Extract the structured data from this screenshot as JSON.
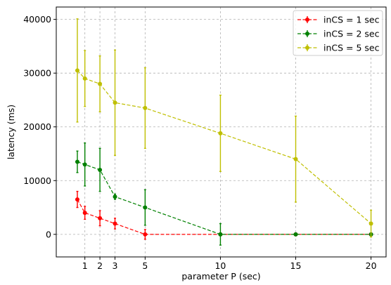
{
  "chart_data": {
    "type": "line",
    "title": "",
    "xlabel": "parameter P (sec)",
    "ylabel": "latency (ms)",
    "xticks": [
      1,
      2,
      3,
      5,
      10,
      15,
      20
    ],
    "yticks": [
      0,
      10000,
      20000,
      30000,
      40000
    ],
    "xlim": [
      -0.9,
      21
    ],
    "ylim": [
      -4200,
      42300
    ],
    "x": [
      0.5,
      1,
      2,
      3,
      5,
      10,
      15,
      20
    ],
    "grid": true,
    "legend_position": "top-right",
    "series": [
      {
        "name": "inCS = 1 sec",
        "color": "#ff0000",
        "values": [
          6500,
          4000,
          3000,
          2000,
          0,
          0,
          0,
          0
        ],
        "errors": [
          1500,
          1200,
          1400,
          1000,
          900,
          100,
          50,
          50
        ]
      },
      {
        "name": "inCS = 2 sec",
        "color": "#008000",
        "values": [
          13500,
          13000,
          12000,
          7000,
          5000,
          0,
          0,
          0
        ],
        "errors": [
          2000,
          4000,
          4000,
          500,
          3300,
          2000,
          100,
          100
        ]
      },
      {
        "name": "inCS = 5 sec",
        "color": "#bfbf00",
        "values": [
          30500,
          29000,
          28000,
          24500,
          23500,
          18800,
          14000,
          2000
        ],
        "errors": [
          9600,
          5200,
          5200,
          9800,
          7500,
          7100,
          8000,
          2500
        ]
      }
    ]
  }
}
